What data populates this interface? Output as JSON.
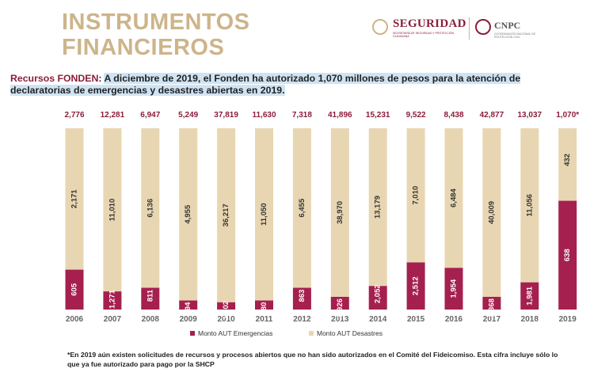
{
  "header": {
    "title_line1": "INSTRUMENTOS",
    "title_line2": "FINANCIEROS",
    "logo_seguridad": "SEGURIDAD",
    "logo_seguridad_sub": "SECRETARÍA DE SEGURIDAD Y PROTECCIÓN CIUDADANA",
    "logo_cnpc": "CNPC",
    "logo_cnpc_sub": "COORDINACIÓN NACIONAL DE PROTECCIÓN CIVIL"
  },
  "intro": {
    "lead": "Recursos FONDEN",
    "sep": ": ",
    "text": "A diciembre de 2019, el Fonden ha autorizado 1,070 millones de pesos para la atención de declaratorias de emergencias y desastres abiertas en 2019."
  },
  "colors": {
    "emergencias": "#a5204f",
    "desastres": "#e8d6b2",
    "accent": "#cdb48a",
    "brand": "#8b1d3a"
  },
  "chart_data": {
    "type": "bar",
    "stacked": true,
    "categories": [
      "2006",
      "2007",
      "2008",
      "2009",
      "2010",
      "2011",
      "2012",
      "2013",
      "2014",
      "2015",
      "2016",
      "2017",
      "2018",
      "2019"
    ],
    "totals": [
      "2,776",
      "12,281",
      "6,947",
      "5,249",
      "37,819",
      "11,630",
      "7,318",
      "41,896",
      "15,231",
      "9,522",
      "8,438",
      "42,877",
      "13,037",
      "1,070*"
    ],
    "series": [
      {
        "name": "Monto AUT Emergencias",
        "color": "#a5204f",
        "values": [
          605,
          1271,
          811,
          294,
          1602,
          580,
          863,
          2926,
          2052,
          2512,
          1954,
          2868,
          1981,
          638
        ],
        "labels": [
          "605",
          "1,271",
          "811",
          "294",
          "1,602",
          "580",
          "863",
          "2,926",
          "2,052",
          "2,512",
          "1,954",
          "2,868",
          "1,981",
          "638"
        ],
        "fill_fraction": [
          0.22,
          0.1,
          0.12,
          0.05,
          0.04,
          0.05,
          0.12,
          0.07,
          0.13,
          0.26,
          0.23,
          0.07,
          0.15,
          0.6
        ]
      },
      {
        "name": "Monto AUT Desastres",
        "color": "#e8d6b2",
        "values": [
          2171,
          11010,
          6136,
          4955,
          36217,
          11050,
          6455,
          38970,
          13179,
          7010,
          6484,
          40009,
          11056,
          432
        ],
        "labels": [
          "2,171",
          "11,010",
          "6,136",
          "4,955",
          "36,217",
          "11,050",
          "6,455",
          "38,970",
          "13,179",
          "7,010",
          "6,484",
          "40,009",
          "11,056",
          "432"
        ]
      }
    ],
    "legend_position": "bottom-center",
    "grid": false
  },
  "footnote": "*En 2019 aún existen solicitudes de recursos y procesos abiertos que no han sido autorizados en el Comité del Fideicomiso. Esta cifra incluye sólo lo que ya fue autorizado para pago por la SHCP"
}
